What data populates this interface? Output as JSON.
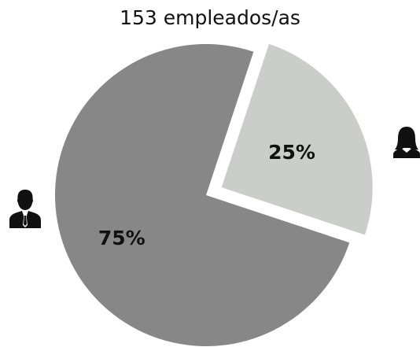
{
  "chart_data": {
    "type": "pie",
    "title": "153 empleados/as",
    "slices": [
      {
        "label": "25%",
        "value": 25,
        "color": "#cbcdca",
        "icon": "woman-icon",
        "exploded": true
      },
      {
        "label": "75%",
        "value": 75,
        "color": "#878787",
        "icon": "man-icon",
        "exploded": false
      }
    ],
    "start_angle": "top, clockwise"
  }
}
